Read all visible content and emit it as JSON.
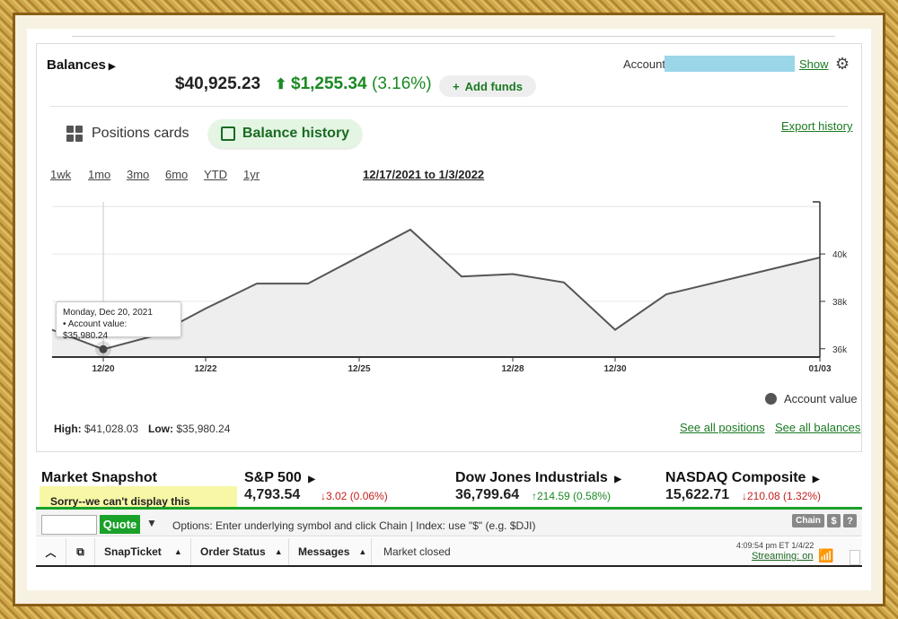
{
  "balances": {
    "title": "Balances",
    "value": "$40,925.23",
    "gain_arrow": "⬆",
    "gain_value": "$1,255.34",
    "gain_pct": "(3.16%)",
    "add_funds_label": "Add funds",
    "account_label": "Account:",
    "show_label": "Show"
  },
  "view_toggle": {
    "positions_cards": "Positions cards",
    "balance_history": "Balance history",
    "export_history": "Export history"
  },
  "ranges": [
    "1wk",
    "1mo",
    "3mo",
    "6mo",
    "YTD",
    "1yr"
  ],
  "date_range": "12/17/2021 to 1/3/2022",
  "tooltip": {
    "date": "Monday, Dec 20, 2021",
    "text": "• Account value: $35,980.24"
  },
  "chart_data": {
    "type": "area",
    "series": [
      {
        "name": "Account value",
        "x": [
          "12/19",
          "12/20",
          "12/21",
          "12/22",
          "12/23",
          "12/24",
          "12/26",
          "12/27",
          "12/28",
          "12/29",
          "12/30",
          "12/31",
          "01/03"
        ],
        "values": [
          36800,
          35980,
          36550,
          37700,
          38750,
          38750,
          41028,
          39050,
          39150,
          38800,
          36800,
          38300,
          39850
        ]
      }
    ],
    "x_ticks": [
      "12/20",
      "12/22",
      "12/25",
      "12/28",
      "12/30",
      "01/03"
    ],
    "y_ticks": [
      "36k",
      "38k",
      "40k"
    ],
    "ylim": [
      35650,
      42200
    ],
    "legend": "Account value",
    "legend_position": "bottom-right"
  },
  "hilo": {
    "high_label": "High:",
    "high_value": "$41,028.03",
    "low_label": "Low:",
    "low_value": "$35,980.24",
    "see_positions": "See all positions",
    "see_balances": "See all balances"
  },
  "market": {
    "title": "Market Snapshot",
    "warning": "Sorry--we can't display this",
    "indices": [
      {
        "name": "S&P 500",
        "value": "4,793.54",
        "change": "↓3.02 (0.06%)",
        "dir": "neg"
      },
      {
        "name": "Dow Jones Industrials",
        "value": "36,799.64",
        "change": "↑214.59 (0.58%)",
        "dir": "pos"
      },
      {
        "name": "NASDAQ Composite",
        "value": "15,622.71",
        "change": "↓210.08 (1.32%)",
        "dir": "neg"
      }
    ]
  },
  "quote_bar": {
    "quote_label": "Quote",
    "options_text": "Options: Enter underlying symbol and click Chain | Index: use \"$\" (e.g. $DJI)",
    "chain_label": "Chain",
    "dollar_label": "$",
    "help_label": "?"
  },
  "bottom_bar": {
    "snapticket": "SnapTicket",
    "order_status": "Order Status",
    "messages": "Messages",
    "market_closed": "Market closed",
    "timestamp": "4:09:54 pm ET 1/4/22",
    "streaming": "Streaming: on"
  }
}
